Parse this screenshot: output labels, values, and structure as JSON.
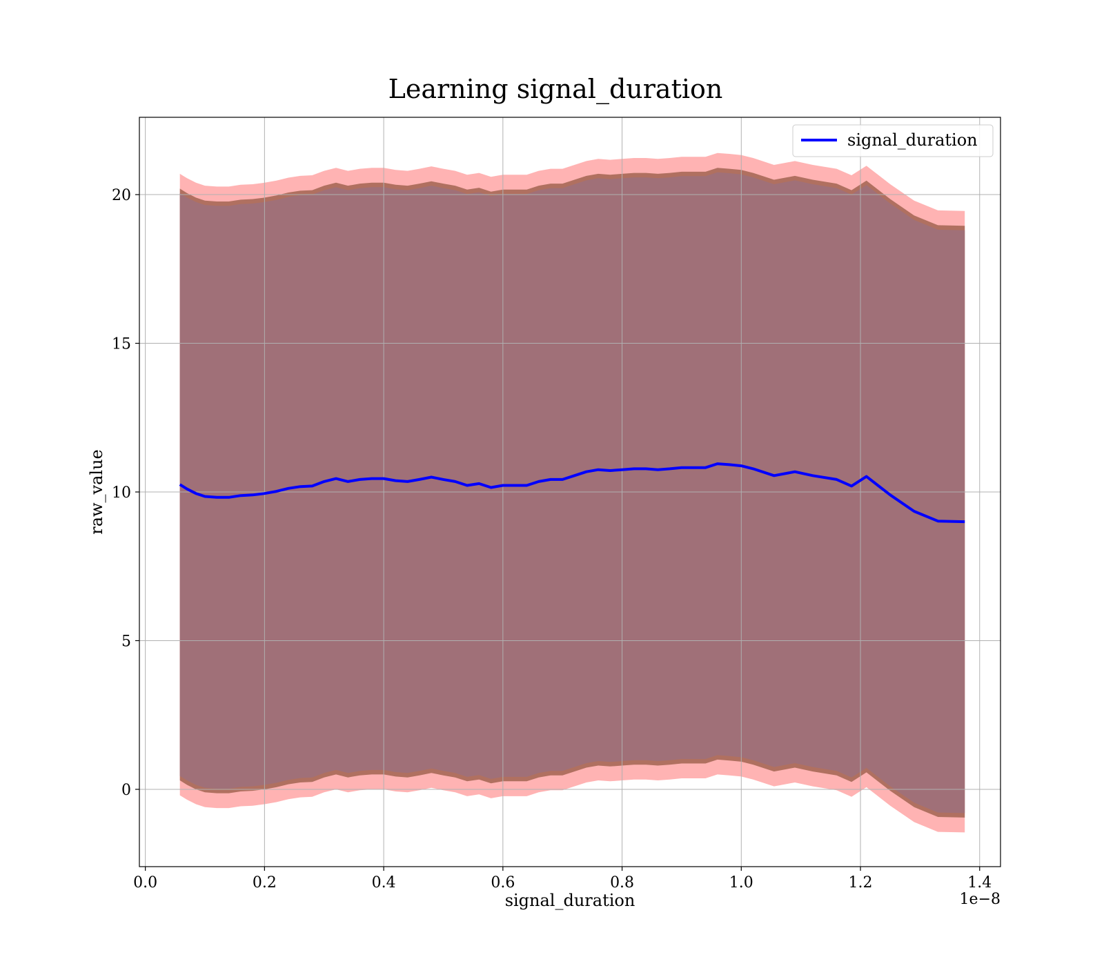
{
  "chart_data": {
    "type": "line",
    "title": "Learning signal_duration",
    "xlabel": "signal_duration",
    "ylabel": "raw_value",
    "x_offset_label": "1e−8",
    "xlim": [
      -0.01,
      1.435
    ],
    "ylim": [
      -2.6,
      22.6
    ],
    "x_ticks": [
      0.0,
      0.2,
      0.4,
      0.6,
      0.8,
      1.0,
      1.2,
      1.4
    ],
    "x_tick_labels": [
      "0.0",
      "0.2",
      "0.4",
      "0.6",
      "0.8",
      "1.0",
      "1.2",
      "1.4"
    ],
    "y_ticks": [
      0,
      5,
      10,
      15,
      20
    ],
    "y_tick_labels": [
      "0",
      "5",
      "10",
      "15",
      "20"
    ],
    "grid": true,
    "legend_position": "top-right",
    "colors": {
      "line": "#0000ff",
      "outer_band": "#ff9999",
      "middle_band": "#b07060",
      "inner_band": "#a07078"
    },
    "series": [
      {
        "name": "signal_duration",
        "x": [
          0.058,
          0.07,
          0.085,
          0.1,
          0.12,
          0.14,
          0.16,
          0.18,
          0.2,
          0.22,
          0.24,
          0.26,
          0.28,
          0.3,
          0.32,
          0.34,
          0.36,
          0.38,
          0.4,
          0.42,
          0.44,
          0.46,
          0.48,
          0.5,
          0.52,
          0.54,
          0.56,
          0.58,
          0.6,
          0.62,
          0.64,
          0.66,
          0.68,
          0.7,
          0.72,
          0.74,
          0.76,
          0.78,
          0.8,
          0.82,
          0.84,
          0.86,
          0.88,
          0.9,
          0.92,
          0.94,
          0.96,
          0.98,
          1.0,
          1.02,
          1.055,
          1.09,
          1.12,
          1.16,
          1.185,
          1.21,
          1.25,
          1.29,
          1.33,
          1.375
        ],
        "values": [
          10.25,
          10.1,
          9.95,
          9.85,
          9.82,
          9.82,
          9.88,
          9.9,
          9.95,
          10.02,
          10.12,
          10.18,
          10.2,
          10.35,
          10.45,
          10.35,
          10.42,
          10.45,
          10.45,
          10.38,
          10.35,
          10.42,
          10.5,
          10.42,
          10.35,
          10.22,
          10.28,
          10.15,
          10.22,
          10.22,
          10.22,
          10.35,
          10.42,
          10.42,
          10.55,
          10.68,
          10.75,
          10.72,
          10.75,
          10.78,
          10.78,
          10.75,
          10.78,
          10.82,
          10.82,
          10.82,
          10.95,
          10.92,
          10.88,
          10.78,
          10.55,
          10.68,
          10.55,
          10.42,
          10.2,
          10.52,
          9.9,
          9.35,
          9.02,
          9.0
        ],
        "band_half_widths": {
          "outer": [
            10.45,
            10.45,
            10.45,
            10.45,
            10.45,
            10.45,
            10.45,
            10.45,
            10.45,
            10.45,
            10.45,
            10.45,
            10.45,
            10.45,
            10.45,
            10.45,
            10.45,
            10.45,
            10.45,
            10.45,
            10.45,
            10.45,
            10.45,
            10.45,
            10.45,
            10.45,
            10.45,
            10.45,
            10.45,
            10.45,
            10.45,
            10.45,
            10.45,
            10.45,
            10.45,
            10.45,
            10.45,
            10.45,
            10.45,
            10.45,
            10.45,
            10.45,
            10.45,
            10.45,
            10.45,
            10.45,
            10.45,
            10.45,
            10.45,
            10.45,
            10.45,
            10.45,
            10.45,
            10.45,
            10.45,
            10.45,
            10.45,
            10.45,
            10.45,
            10.45
          ],
          "middle": [
            9.95,
            9.95,
            9.95,
            9.95,
            9.95,
            9.95,
            9.95,
            9.95,
            9.95,
            9.95,
            9.95,
            9.95,
            9.95,
            9.95,
            9.95,
            9.95,
            9.95,
            9.95,
            9.95,
            9.95,
            9.95,
            9.95,
            9.95,
            9.95,
            9.95,
            9.95,
            9.95,
            9.95,
            9.95,
            9.95,
            9.95,
            9.95,
            9.95,
            9.95,
            9.95,
            9.95,
            9.95,
            9.95,
            9.95,
            9.95,
            9.95,
            9.95,
            9.95,
            9.95,
            9.95,
            9.95,
            9.95,
            9.95,
            9.95,
            9.95,
            9.95,
            9.95,
            9.95,
            9.95,
            9.95,
            9.95,
            9.95,
            9.95,
            9.95,
            9.95
          ],
          "inner": [
            9.8,
            9.8,
            9.8,
            9.8,
            9.8,
            9.8,
            9.8,
            9.8,
            9.8,
            9.8,
            9.8,
            9.8,
            9.8,
            9.8,
            9.8,
            9.8,
            9.8,
            9.8,
            9.8,
            9.8,
            9.8,
            9.8,
            9.8,
            9.8,
            9.8,
            9.8,
            9.8,
            9.8,
            9.8,
            9.8,
            9.8,
            9.8,
            9.8,
            9.8,
            9.8,
            9.8,
            9.8,
            9.8,
            9.8,
            9.8,
            9.8,
            9.8,
            9.8,
            9.8,
            9.8,
            9.8,
            9.8,
            9.8,
            9.8,
            9.8,
            9.8,
            9.8,
            9.8,
            9.8,
            9.8,
            9.8,
            9.8,
            9.8,
            9.8,
            9.8
          ]
        }
      }
    ]
  }
}
